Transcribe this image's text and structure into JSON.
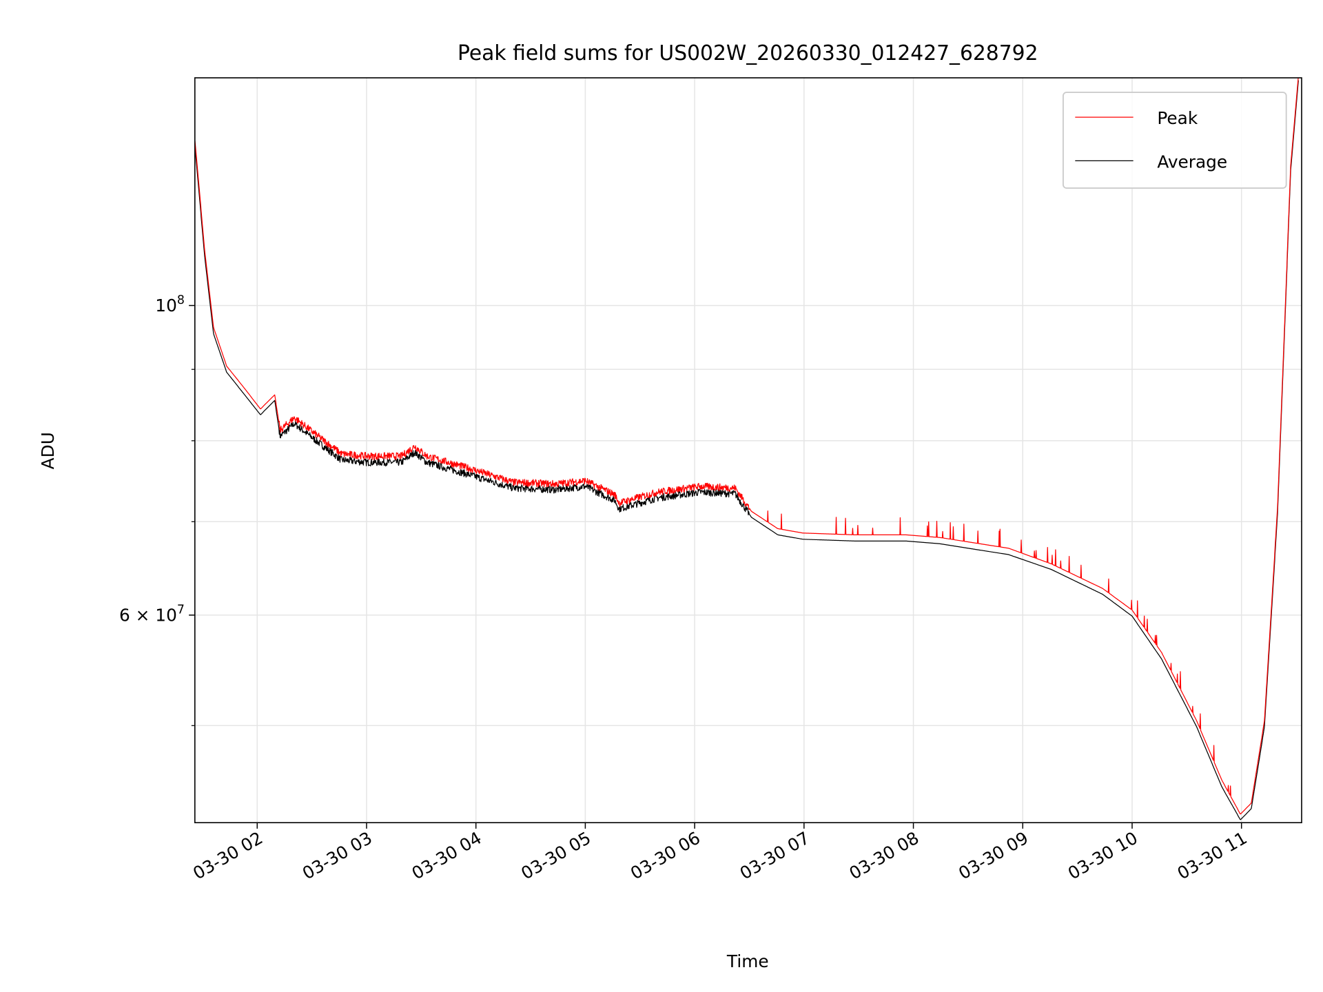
{
  "chart_data": {
    "type": "line",
    "title": "Peak field sums for US002W_20260330_012427_628792",
    "xlabel": "Time",
    "ylabel": "ADU",
    "x_unit": "hours since 03-30 00:00",
    "xlim": [
      1.43,
      11.55
    ],
    "ylim": [
      42600000,
      145600000
    ],
    "yscale": "log",
    "grid": true,
    "legend_position": "top-right",
    "x_ticks": [
      {
        "value": 2,
        "label": "03-30 02"
      },
      {
        "value": 3,
        "label": "03-30 03"
      },
      {
        "value": 4,
        "label": "03-30 04"
      },
      {
        "value": 5,
        "label": "03-30 05"
      },
      {
        "value": 6,
        "label": "03-30 06"
      },
      {
        "value": 7,
        "label": "03-30 07"
      },
      {
        "value": 8,
        "label": "03-30 08"
      },
      {
        "value": 9,
        "label": "03-30 09"
      },
      {
        "value": 10,
        "label": "03-30 10"
      },
      {
        "value": 11,
        "label": "03-30 11"
      }
    ],
    "y_major_ticks": [
      {
        "value": 100000000,
        "base": "10",
        "exp": "8",
        "prefix": ""
      },
      {
        "value": 60000000,
        "base": "10",
        "exp": "7",
        "prefix": "6 × "
      }
    ],
    "y_minor_ticks": [
      90000000,
      80000000,
      70000000,
      50000000
    ],
    "x": [
      1.43,
      1.52,
      1.6,
      1.72,
      1.875,
      2.03,
      2.16,
      2.21,
      2.34,
      2.54,
      2.77,
      3.0,
      3.32,
      3.44,
      3.55,
      3.95,
      4.34,
      4.73,
      5.0,
      5.27,
      5.31,
      5.66,
      6.05,
      6.37,
      6.52,
      6.76,
      6.99,
      7.46,
      7.93,
      8.24,
      8.87,
      9.26,
      9.73,
      10.0,
      10.27,
      10.59,
      10.82,
      10.99,
      11.09,
      11.21,
      11.33,
      11.45,
      11.52
    ],
    "series": [
      {
        "name": "Peak",
        "color": "#ff0000",
        "values": [
          131500000,
          109500000,
          96500000,
          90500000,
          87400000,
          84300000,
          86300000,
          81400000,
          83100000,
          80800000,
          78300000,
          78000000,
          78000000,
          79300000,
          78000000,
          76400000,
          74700000,
          74500000,
          74900000,
          73200000,
          72200000,
          73500000,
          74200000,
          74000000,
          71200000,
          69200000,
          68700000,
          68500000,
          68500000,
          68200000,
          67000000,
          65300000,
          62700000,
          60500000,
          56400000,
          50400000,
          45700000,
          43200000,
          44000000,
          50400000,
          71700000,
          126000000,
          146000000
        ]
      },
      {
        "name": "Average",
        "color": "#000000",
        "values": [
          130200000,
          108400000,
          95500000,
          89600000,
          86500000,
          83500000,
          85500000,
          80600000,
          82300000,
          80000000,
          77500000,
          77200000,
          77200000,
          78500000,
          77200000,
          75600000,
          74000000,
          73800000,
          74200000,
          72500000,
          71500000,
          72800000,
          73500000,
          73300000,
          70500000,
          68500000,
          68000000,
          67800000,
          67800000,
          67500000,
          66300000,
          64700000,
          62100000,
          59900000,
          55800000,
          49900000,
          45200000,
          42800000,
          43600000,
          49900000,
          71000000,
          125000000,
          145000000
        ]
      }
    ]
  }
}
